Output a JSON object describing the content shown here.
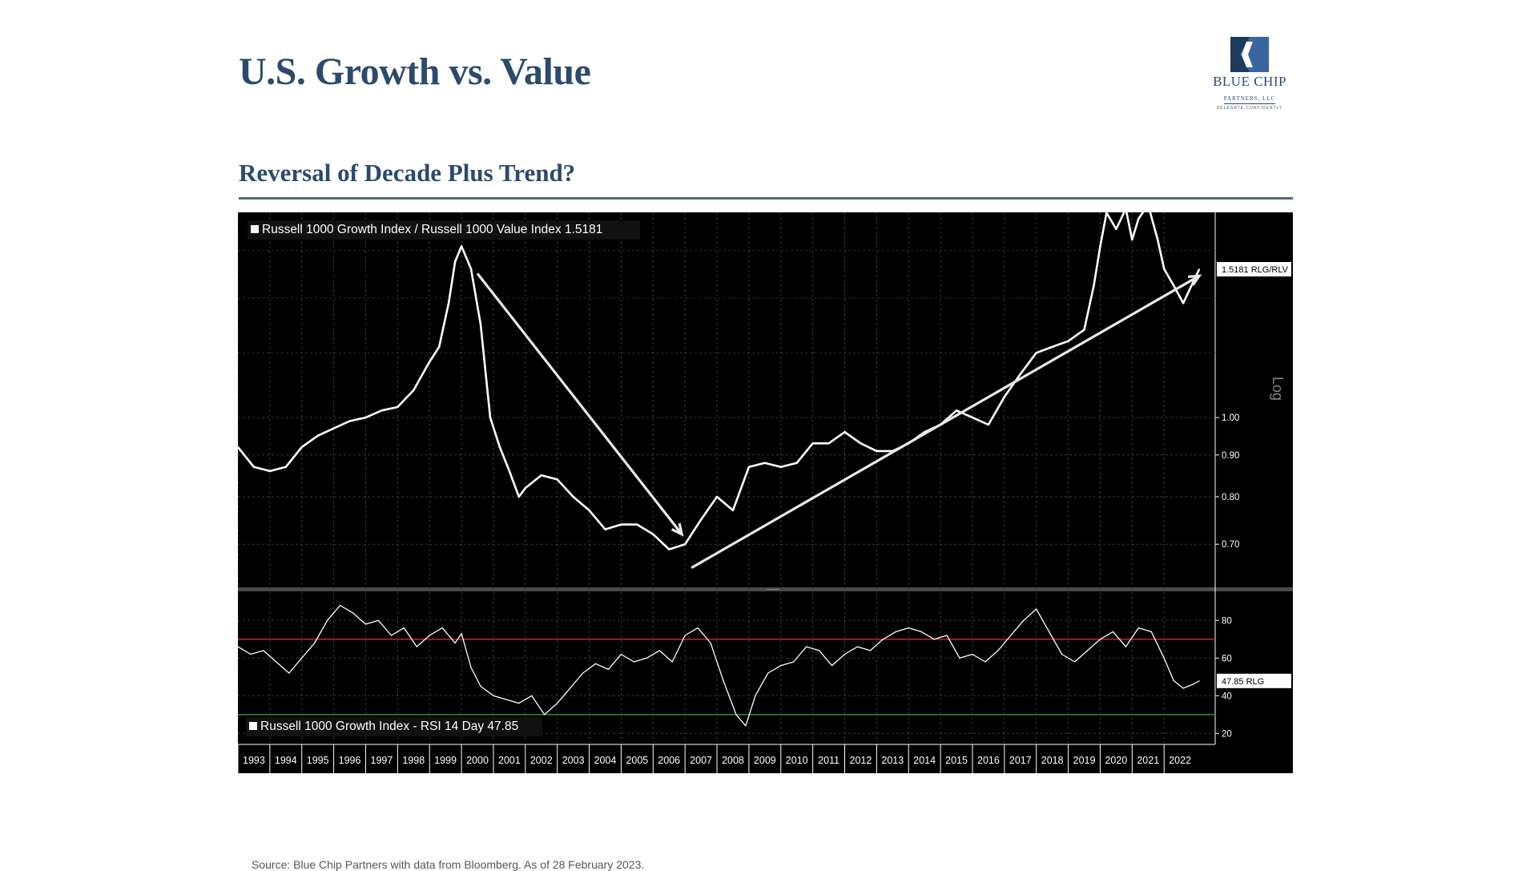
{
  "page": {
    "title": "U.S. Growth vs. Value",
    "subtitle": "Reversal of Decade Plus Trend?",
    "source": "Source: Blue Chip Partners with data from Bloomberg. As of 28 February 2023."
  },
  "logo": {
    "name": "BLUE CHIP",
    "sub": "PARTNERS, LLC",
    "tagline": "DELEGATE CONFIDENTLY"
  },
  "colors": {
    "title": "#2c4a6e",
    "chart_bg": "#000000",
    "line": "#ffffff",
    "rsi_overbought": "#c0282d",
    "rsi_oversold": "#2e8b3a"
  },
  "chart_data": [
    {
      "type": "line",
      "legend": "Russell 1000 Growth Index / Russell 1000 Value Index 1.5181",
      "last_value_label": "1.5181 RLG/RLV",
      "scale_label": "Log",
      "yscale": "log",
      "ylim": [
        0.62,
        1.75
      ],
      "y_ticks": [
        "1.00",
        "0.90",
        "0.80",
        "0.70"
      ],
      "x": [
        1993,
        1993.5,
        1994,
        1994.5,
        1995,
        1995.5,
        1996,
        1996.5,
        1997,
        1997.5,
        1998,
        1998.5,
        1999,
        1999.3,
        1999.6,
        1999.8,
        2000,
        2000.3,
        2000.6,
        2000.9,
        2001.2,
        2001.5,
        2001.8,
        2002,
        2002.5,
        2003,
        2003.5,
        2004,
        2004.5,
        2005,
        2005.5,
        2006,
        2006.5,
        2007,
        2007.5,
        2008,
        2008.5,
        2009,
        2009.5,
        2010,
        2010.5,
        2011,
        2011.5,
        2012,
        2012.5,
        2013,
        2013.5,
        2014,
        2014.5,
        2015,
        2015.5,
        2016,
        2016.5,
        2017,
        2017.5,
        2018,
        2018.5,
        2019,
        2019.5,
        2019.8,
        2020,
        2020.2,
        2020.5,
        2020.8,
        2021,
        2021.2,
        2021.5,
        2021.8,
        2022,
        2022.3,
        2022.6,
        2023.1
      ],
      "values": [
        0.92,
        0.87,
        0.86,
        0.87,
        0.92,
        0.95,
        0.97,
        0.99,
        1.0,
        1.02,
        1.03,
        1.08,
        1.17,
        1.22,
        1.38,
        1.55,
        1.62,
        1.52,
        1.3,
        1.0,
        0.92,
        0.86,
        0.8,
        0.82,
        0.85,
        0.84,
        0.8,
        0.77,
        0.73,
        0.74,
        0.74,
        0.72,
        0.69,
        0.7,
        0.75,
        0.8,
        0.77,
        0.87,
        0.88,
        0.87,
        0.88,
        0.93,
        0.93,
        0.96,
        0.93,
        0.91,
        0.91,
        0.93,
        0.96,
        0.98,
        1.02,
        1.0,
        0.98,
        1.06,
        1.13,
        1.2,
        1.22,
        1.24,
        1.28,
        1.45,
        1.62,
        1.78,
        1.7,
        1.8,
        1.65,
        1.75,
        1.82,
        1.65,
        1.52,
        1.45,
        1.38,
        1.5181
      ],
      "annotations": [
        {
          "type": "arrow",
          "from": [
            2000.5,
            1.5
          ],
          "to": [
            2006.9,
            0.72
          ]
        },
        {
          "type": "arrow",
          "from": [
            2007.2,
            0.655
          ],
          "to": [
            2023.1,
            1.49
          ]
        }
      ]
    },
    {
      "type": "line",
      "legend": "Russell 1000 Growth Index - RSI 14 Day 47.85",
      "last_value_label": "47.85 RLG",
      "ylim": [
        15,
        95
      ],
      "y_ticks": [
        "80",
        "60",
        "40",
        "20"
      ],
      "reference_lines": [
        {
          "value": 70,
          "color": "#c0282d"
        },
        {
          "value": 30,
          "color": "#2e8b3a"
        }
      ],
      "x": [
        1993,
        1993.4,
        1993.8,
        1994.2,
        1994.6,
        1995,
        1995.4,
        1995.8,
        1996.2,
        1996.6,
        1997,
        1997.4,
        1997.8,
        1998.2,
        1998.6,
        1999,
        1999.4,
        1999.8,
        2000,
        2000.3,
        2000.6,
        2001,
        2001.4,
        2001.8,
        2002.2,
        2002.6,
        2003,
        2003.4,
        2003.8,
        2004.2,
        2004.6,
        2005,
        2005.4,
        2005.8,
        2006.2,
        2006.6,
        2007,
        2007.4,
        2007.8,
        2008.2,
        2008.6,
        2008.9,
        2009.2,
        2009.6,
        2010,
        2010.4,
        2010.8,
        2011.2,
        2011.6,
        2012,
        2012.4,
        2012.8,
        2013.2,
        2013.6,
        2014,
        2014.4,
        2014.8,
        2015.2,
        2015.6,
        2016,
        2016.4,
        2016.8,
        2017.2,
        2017.6,
        2018,
        2018.4,
        2018.8,
        2019.2,
        2019.6,
        2020,
        2020.4,
        2020.8,
        2021.2,
        2021.6,
        2022,
        2022.3,
        2022.6,
        2022.9,
        2023.1
      ],
      "values": [
        66,
        62,
        64,
        58,
        52,
        60,
        68,
        80,
        88,
        84,
        78,
        80,
        72,
        76,
        66,
        72,
        76,
        68,
        73,
        55,
        45,
        40,
        38,
        36,
        40,
        30,
        36,
        44,
        52,
        57,
        54,
        62,
        58,
        60,
        64,
        58,
        72,
        76,
        68,
        48,
        30,
        24,
        40,
        52,
        56,
        58,
        66,
        64,
        56,
        62,
        66,
        64,
        70,
        74,
        76,
        74,
        70,
        72,
        60,
        62,
        58,
        64,
        72,
        80,
        86,
        74,
        62,
        58,
        64,
        70,
        74,
        66,
        76,
        74,
        60,
        48,
        44,
        46,
        47.85
      ]
    }
  ],
  "x_axis": {
    "labels": [
      "1993",
      "1994",
      "1995",
      "1996",
      "1997",
      "1998",
      "1999",
      "2000",
      "2001",
      "2002",
      "2003",
      "2004",
      "2005",
      "2006",
      "2007",
      "2008",
      "2009",
      "2010",
      "2011",
      "2012",
      "2013",
      "2014",
      "2015",
      "2016",
      "2017",
      "2018",
      "2019",
      "2020",
      "2021",
      "2022"
    ]
  }
}
